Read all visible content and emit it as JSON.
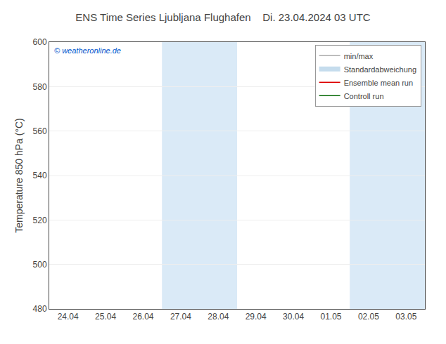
{
  "chart_data": {
    "type": "line",
    "title": "ENS Time Series Ljubljana Flughafen    Di. 23.04.2024 03 UTC",
    "ylabel": "Temperature 850 hPa (°C)",
    "categories": [
      "24.04",
      "25.04",
      "26.04",
      "27.04",
      "28.04",
      "29.04",
      "30.04",
      "01.05",
      "02.05",
      "03.05"
    ],
    "series": [
      {
        "name": "min/max",
        "color": "#aaaaaa",
        "line_style": "solid",
        "values": [
          null,
          null,
          null,
          null,
          null,
          null,
          null,
          null,
          null,
          null
        ]
      },
      {
        "name": "Standardabweichung",
        "color": "#c5dced",
        "line_style": "thick",
        "values": [
          null,
          null,
          null,
          null,
          null,
          null,
          null,
          null,
          null,
          null
        ]
      },
      {
        "name": "Ensemble mean run",
        "color": "#dd0000",
        "line_style": "solid",
        "values": [
          null,
          null,
          null,
          null,
          null,
          null,
          null,
          null,
          null,
          null
        ]
      },
      {
        "name": "Controll run",
        "color": "#006600",
        "line_style": "solid",
        "values": [
          null,
          null,
          null,
          null,
          null,
          null,
          null,
          null,
          null,
          null
        ]
      }
    ],
    "shaded_bands": [
      {
        "start": "27.04",
        "end": "28.04",
        "color": "#daeaf7"
      },
      {
        "start": "02.05",
        "end": "03.05",
        "color": "#daeaf7"
      }
    ],
    "annotations": [
      {
        "text": "© weatheronline.de",
        "color": "#0055cc"
      }
    ],
    "ylim": [
      480,
      600
    ],
    "yticks": [
      480,
      500,
      520,
      540,
      560,
      580,
      600
    ],
    "grid": "y",
    "legend": "upper right"
  }
}
